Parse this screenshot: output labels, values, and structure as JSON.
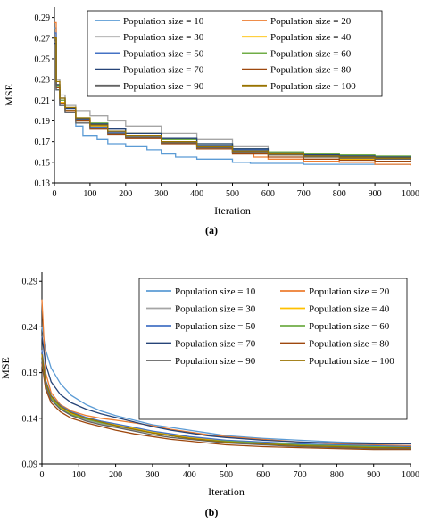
{
  "chart_data": [
    {
      "type": "line",
      "panel_label": "(a)",
      "xlabel": "Iteration",
      "ylabel": "MSE",
      "xlim": [
        0,
        1000
      ],
      "ylim": [
        0.13,
        0.3
      ],
      "yticks": [
        "0.13",
        "0.15",
        "0.17",
        "0.19",
        "0.21",
        "0.23",
        "0.25",
        "0.27",
        "0.29"
      ],
      "xticks": [
        "0",
        "100",
        "200",
        "300",
        "400",
        "500",
        "600",
        "700",
        "800",
        "900",
        "1000"
      ],
      "step": true,
      "grid": false,
      "legend_position": "top-right",
      "series": [
        {
          "name": "Population size = 10",
          "color": "#5b9bd5",
          "x": [
            0,
            5,
            15,
            30,
            60,
            80,
            120,
            150,
            200,
            260,
            300,
            340,
            400,
            500,
            550,
            600,
            700,
            1000
          ],
          "y": [
            0.28,
            0.22,
            0.205,
            0.2,
            0.185,
            0.176,
            0.172,
            0.168,
            0.165,
            0.162,
            0.158,
            0.155,
            0.153,
            0.15,
            0.149,
            0.149,
            0.148,
            0.148
          ]
        },
        {
          "name": "Population size = 20",
          "color": "#ed7d31",
          "x": [
            0,
            5,
            15,
            30,
            60,
            100,
            150,
            200,
            300,
            400,
            500,
            560,
            600,
            700,
            800,
            900,
            1000
          ],
          "y": [
            0.285,
            0.225,
            0.21,
            0.2,
            0.19,
            0.185,
            0.18,
            0.178,
            0.172,
            0.166,
            0.16,
            0.155,
            0.153,
            0.151,
            0.15,
            0.148,
            0.147
          ]
        },
        {
          "name": "Population size = 30",
          "color": "#a5a5a5",
          "x": [
            0,
            5,
            15,
            30,
            60,
            100,
            150,
            200,
            300,
            400,
            500,
            600,
            700,
            800,
            900,
            1000
          ],
          "y": [
            0.27,
            0.23,
            0.215,
            0.205,
            0.2,
            0.195,
            0.19,
            0.185,
            0.178,
            0.172,
            0.165,
            0.16,
            0.158,
            0.156,
            0.154,
            0.153
          ]
        },
        {
          "name": "Population size = 40",
          "color": "#ffc000",
          "x": [
            0,
            5,
            15,
            30,
            60,
            100,
            150,
            200,
            300,
            400,
            500,
            600,
            700,
            800,
            900,
            1000
          ],
          "y": [
            0.27,
            0.222,
            0.208,
            0.2,
            0.19,
            0.185,
            0.18,
            0.175,
            0.17,
            0.165,
            0.16,
            0.157,
            0.155,
            0.153,
            0.151,
            0.15
          ]
        },
        {
          "name": "Population size = 50",
          "color": "#4472c4",
          "x": [
            0,
            5,
            15,
            30,
            60,
            100,
            150,
            200,
            300,
            400,
            500,
            600,
            700,
            800,
            900,
            1000
          ],
          "y": [
            0.275,
            0.22,
            0.205,
            0.198,
            0.19,
            0.184,
            0.179,
            0.175,
            0.17,
            0.166,
            0.162,
            0.158,
            0.156,
            0.155,
            0.154,
            0.153
          ]
        },
        {
          "name": "Population size = 60",
          "color": "#70ad47",
          "x": [
            0,
            5,
            15,
            30,
            60,
            100,
            150,
            200,
            300,
            400,
            500,
            600,
            700,
            800,
            900,
            1000
          ],
          "y": [
            0.27,
            0.224,
            0.21,
            0.2,
            0.193,
            0.188,
            0.183,
            0.178,
            0.172,
            0.168,
            0.163,
            0.16,
            0.158,
            0.157,
            0.156,
            0.155
          ]
        },
        {
          "name": "Population size = 70",
          "color": "#264478",
          "x": [
            0,
            5,
            15,
            30,
            60,
            100,
            150,
            200,
            300,
            400,
            500,
            600,
            700,
            800,
            900,
            1000
          ],
          "y": [
            0.265,
            0.225,
            0.212,
            0.202,
            0.192,
            0.187,
            0.182,
            0.178,
            0.173,
            0.168,
            0.163,
            0.159,
            0.157,
            0.156,
            0.155,
            0.154
          ]
        },
        {
          "name": "Population size = 80",
          "color": "#9e480e",
          "x": [
            0,
            5,
            15,
            30,
            60,
            100,
            150,
            200,
            300,
            400,
            500,
            600,
            700,
            800,
            900,
            1000
          ],
          "y": [
            0.27,
            0.222,
            0.207,
            0.2,
            0.19,
            0.182,
            0.177,
            0.173,
            0.168,
            0.163,
            0.158,
            0.155,
            0.153,
            0.152,
            0.151,
            0.15
          ]
        },
        {
          "name": "Population size = 90",
          "color": "#636363",
          "x": [
            0,
            5,
            15,
            30,
            60,
            100,
            150,
            200,
            300,
            400,
            500,
            600,
            700,
            800,
            900,
            1000
          ],
          "y": [
            0.268,
            0.22,
            0.205,
            0.198,
            0.188,
            0.183,
            0.178,
            0.174,
            0.169,
            0.164,
            0.16,
            0.157,
            0.155,
            0.154,
            0.153,
            0.152
          ]
        },
        {
          "name": "Population size = 100",
          "color": "#997300",
          "x": [
            0,
            5,
            15,
            30,
            60,
            100,
            150,
            200,
            300,
            400,
            500,
            600,
            700,
            800,
            900,
            1000
          ],
          "y": [
            0.27,
            0.228,
            0.212,
            0.203,
            0.193,
            0.186,
            0.18,
            0.176,
            0.17,
            0.165,
            0.161,
            0.158,
            0.156,
            0.155,
            0.154,
            0.153
          ]
        }
      ]
    },
    {
      "type": "line",
      "panel_label": "(b)",
      "xlabel": "Iteration",
      "ylabel": "MSE",
      "xlim": [
        0,
        1000
      ],
      "ylim": [
        0.09,
        0.3
      ],
      "yticks": [
        "0.09",
        "0.14",
        "0.19",
        "0.24",
        "0.29"
      ],
      "xticks": [
        "0",
        "100",
        "200",
        "300",
        "400",
        "500",
        "600",
        "700",
        "800",
        "900",
        "1000"
      ],
      "step": false,
      "grid": false,
      "legend_position": "top-right",
      "series": [
        {
          "name": "Population size = 10",
          "color": "#5b9bd5",
          "x": [
            0,
            10,
            25,
            50,
            80,
            120,
            160,
            200,
            250,
            300,
            350,
            400,
            450,
            500,
            600,
            700,
            800,
            900,
            1000
          ],
          "y": [
            0.24,
            0.215,
            0.195,
            0.178,
            0.165,
            0.155,
            0.148,
            0.143,
            0.138,
            0.133,
            0.13,
            0.127,
            0.124,
            0.121,
            0.118,
            0.116,
            0.114,
            0.113,
            0.112
          ]
        },
        {
          "name": "Population size = 20",
          "color": "#ed7d31",
          "x": [
            0,
            10,
            25,
            50,
            80,
            120,
            160,
            200,
            250,
            300,
            350,
            400,
            450,
            500,
            600,
            700,
            800,
            900,
            1000
          ],
          "y": [
            0.27,
            0.19,
            0.168,
            0.155,
            0.148,
            0.143,
            0.14,
            0.138,
            0.135,
            0.132,
            0.128,
            0.125,
            0.122,
            0.12,
            0.117,
            0.114,
            0.112,
            0.111,
            0.11
          ]
        },
        {
          "name": "Population size = 30",
          "color": "#a5a5a5",
          "x": [
            0,
            10,
            25,
            50,
            80,
            120,
            160,
            200,
            250,
            300,
            350,
            400,
            450,
            500,
            600,
            700,
            800,
            900,
            1000
          ],
          "y": [
            0.2,
            0.175,
            0.16,
            0.15,
            0.143,
            0.138,
            0.134,
            0.131,
            0.127,
            0.124,
            0.121,
            0.118,
            0.116,
            0.114,
            0.112,
            0.11,
            0.109,
            0.108,
            0.107
          ]
        },
        {
          "name": "Population size = 40",
          "color": "#ffc000",
          "x": [
            0,
            10,
            25,
            50,
            80,
            120,
            160,
            200,
            250,
            300,
            350,
            400,
            450,
            500,
            600,
            700,
            800,
            900,
            1000
          ],
          "y": [
            0.21,
            0.18,
            0.163,
            0.152,
            0.145,
            0.14,
            0.136,
            0.133,
            0.129,
            0.125,
            0.122,
            0.119,
            0.117,
            0.115,
            0.113,
            0.111,
            0.11,
            0.109,
            0.108
          ]
        },
        {
          "name": "Population size = 50",
          "color": "#4472c4",
          "x": [
            0,
            10,
            25,
            50,
            80,
            120,
            160,
            200,
            250,
            300,
            350,
            400,
            450,
            500,
            600,
            700,
            800,
            900,
            1000
          ],
          "y": [
            0.215,
            0.182,
            0.165,
            0.154,
            0.147,
            0.141,
            0.137,
            0.134,
            0.13,
            0.126,
            0.123,
            0.12,
            0.118,
            0.116,
            0.114,
            0.112,
            0.111,
            0.11,
            0.109
          ]
        },
        {
          "name": "Population size = 60",
          "color": "#70ad47",
          "x": [
            0,
            10,
            25,
            50,
            80,
            120,
            160,
            200,
            250,
            300,
            350,
            400,
            450,
            500,
            600,
            700,
            800,
            900,
            1000
          ],
          "y": [
            0.205,
            0.178,
            0.162,
            0.151,
            0.144,
            0.139,
            0.135,
            0.132,
            0.128,
            0.124,
            0.121,
            0.118,
            0.116,
            0.115,
            0.113,
            0.111,
            0.11,
            0.109,
            0.108
          ]
        },
        {
          "name": "Population size = 70",
          "color": "#264478",
          "x": [
            0,
            10,
            25,
            50,
            80,
            120,
            160,
            200,
            250,
            300,
            350,
            400,
            450,
            500,
            600,
            700,
            800,
            900,
            1000
          ],
          "y": [
            0.23,
            0.2,
            0.18,
            0.166,
            0.157,
            0.15,
            0.145,
            0.141,
            0.136,
            0.131,
            0.127,
            0.124,
            0.121,
            0.119,
            0.116,
            0.114,
            0.113,
            0.112,
            0.112
          ]
        },
        {
          "name": "Population size = 80",
          "color": "#9e480e",
          "x": [
            0,
            10,
            25,
            50,
            80,
            120,
            160,
            200,
            250,
            300,
            350,
            400,
            450,
            500,
            600,
            700,
            800,
            900,
            1000
          ],
          "y": [
            0.2,
            0.172,
            0.157,
            0.147,
            0.14,
            0.135,
            0.131,
            0.127,
            0.123,
            0.12,
            0.117,
            0.115,
            0.113,
            0.111,
            0.109,
            0.108,
            0.107,
            0.106,
            0.106
          ]
        },
        {
          "name": "Population size = 90",
          "color": "#636363",
          "x": [
            0,
            10,
            25,
            50,
            80,
            120,
            160,
            200,
            250,
            300,
            350,
            400,
            450,
            500,
            600,
            700,
            800,
            900,
            1000
          ],
          "y": [
            0.205,
            0.176,
            0.16,
            0.15,
            0.143,
            0.137,
            0.133,
            0.13,
            0.126,
            0.122,
            0.119,
            0.117,
            0.115,
            0.113,
            0.111,
            0.109,
            0.108,
            0.107,
            0.107
          ]
        },
        {
          "name": "Population size = 100",
          "color": "#997300",
          "x": [
            0,
            10,
            25,
            50,
            80,
            120,
            160,
            200,
            250,
            300,
            350,
            400,
            450,
            500,
            600,
            700,
            800,
            900,
            1000
          ],
          "y": [
            0.21,
            0.18,
            0.164,
            0.153,
            0.146,
            0.14,
            0.136,
            0.132,
            0.128,
            0.124,
            0.121,
            0.118,
            0.116,
            0.114,
            0.112,
            0.11,
            0.109,
            0.108,
            0.108
          ]
        }
      ]
    }
  ]
}
